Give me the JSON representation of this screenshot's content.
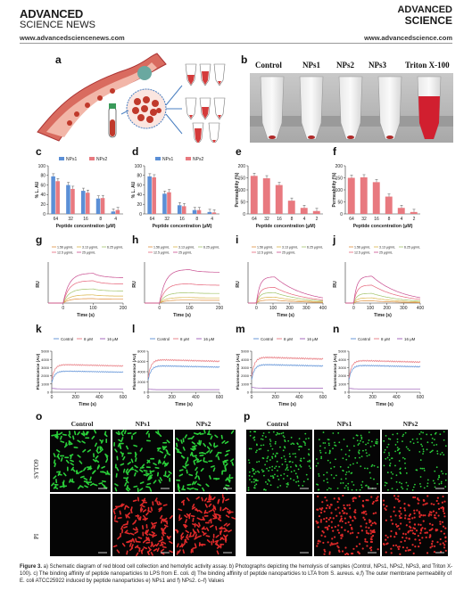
{
  "header": {
    "left_brand_line1": "ADVANCED",
    "left_brand_line2": "SCIENCE NEWS",
    "left_url": "www.advancedsciencenews.com",
    "right_brand_line1": "ADVANCED",
    "right_brand_line2": "SCIENCE",
    "right_url": "www.advancedscience.com"
  },
  "panels": {
    "a": "a",
    "b": "b",
    "c": "c",
    "d": "d",
    "e": "e",
    "f": "f",
    "g": "g",
    "h": "h",
    "i": "i",
    "j": "j",
    "k": "k",
    "l": "l",
    "m": "m",
    "n": "n",
    "o": "o",
    "p": "p"
  },
  "panel_b": {
    "tubes": [
      "Control",
      "NPs1",
      "NPs2",
      "NPs3",
      "Triton X-100"
    ]
  },
  "microscopy": {
    "o_cols": [
      "Control",
      "NPs1",
      "NPs2"
    ],
    "p_cols": [
      "Control",
      "NPs1",
      "NPs2"
    ],
    "rows": [
      "SYTO9",
      "PI"
    ]
  },
  "colors": {
    "nps1": "#5b8fd6",
    "nps2": "#e8797f",
    "bar_red": "#e8797f",
    "control": "#5b8fd6",
    "c8": "#e8797f",
    "c16": "#9b59b6"
  },
  "caption": {
    "label": "Figure 3.",
    "text": " a) Schematic diagram of red blood cell collection and hemolytic activity assay. b) Photographs depicting the hemolysis of samples (Control, NPs1, NPs2, NPs3, and Triton X-100). c) The binding affinity of peptide nanoparticles to LPS from E. coli. d) The binding affinity of peptide nanoparticles to LTA from S. aureus. e,f) The outer membrane permeability of E. coli ATCC25922 induced by peptide nanoparticles e) NPs1 and f) NPs2. c–f) Values"
  },
  "chart_data": [
    {
      "id": "c",
      "type": "bar",
      "categories": [
        "64",
        "32",
        "16",
        "8",
        "4"
      ],
      "series": [
        {
          "name": "NPs1",
          "values": [
            78,
            60,
            48,
            32,
            5
          ]
        },
        {
          "name": "NPs2",
          "values": [
            68,
            52,
            44,
            33,
            8
          ]
        }
      ],
      "xlabel": "Peptide concentration (μM)",
      "ylabel": "% L. AU",
      "ylim": [
        0,
        100
      ],
      "yticks": [
        "0",
        "20",
        "40",
        "60",
        "80",
        "100"
      ]
    },
    {
      "id": "d",
      "type": "bar",
      "categories": [
        "64",
        "32",
        "16",
        "8",
        "4"
      ],
      "series": [
        {
          "name": "NPs1",
          "values": [
            78,
            42,
            18,
            8,
            4
          ]
        },
        {
          "name": "NPs2",
          "values": [
            76,
            45,
            16,
            8,
            3
          ]
        }
      ],
      "xlabel": "Peptide concentration (μM)",
      "ylabel": "% L. AU",
      "ylim": [
        0,
        100
      ],
      "yticks": [
        "0",
        "20",
        "40",
        "60",
        "80",
        "100"
      ]
    },
    {
      "id": "e",
      "type": "bar",
      "categories": [
        "64",
        "32",
        "16",
        "8",
        "4",
        "2"
      ],
      "series": [
        {
          "name": "",
          "values": [
            158,
            148,
            120,
            55,
            25,
            12
          ]
        }
      ],
      "xlabel": "Peptide concentration (μM)",
      "ylabel": "Permeability (%)",
      "ylim": [
        0,
        200
      ],
      "yticks": [
        "0",
        "50",
        "100",
        "150",
        "200"
      ]
    },
    {
      "id": "f",
      "type": "bar",
      "categories": [
        "64",
        "32",
        "16",
        "8",
        "4",
        "2"
      ],
      "series": [
        {
          "name": "",
          "values": [
            150,
            152,
            132,
            72,
            25,
            8
          ]
        }
      ],
      "xlabel": "Peptide concentration (μM)",
      "ylabel": "Permeability (%)",
      "ylim": [
        0,
        200
      ],
      "yticks": [
        "0",
        "50",
        "100",
        "150",
        "200"
      ]
    },
    {
      "id": "g",
      "type": "line",
      "xlabel": "Time (s)",
      "ylabel": "RU",
      "xlim": [
        -50,
        200
      ],
      "xticks": [
        "0",
        "100",
        "200"
      ],
      "legend": [
        "1.56 μg/mL",
        "3.13 μg/mL",
        "6.25 μg/mL",
        "12.5 μg/mL",
        "25 μg/mL"
      ],
      "peaks": [
        12,
        22,
        38,
        60,
        80
      ],
      "t_off": 100,
      "decay": 0.85
    },
    {
      "id": "h",
      "type": "line",
      "xlabel": "Time (s)",
      "ylabel": "RU",
      "xlim": [
        -50,
        200
      ],
      "xticks": [
        "0",
        "100",
        "200"
      ],
      "legend": [
        "1.56 μg/mL",
        "3.13 μg/mL",
        "6.25 μg/mL",
        "12.5 μg/mL",
        "25 μg/mL"
      ],
      "peaks": [
        8,
        15,
        28,
        52,
        90
      ],
      "t_off": 100,
      "decay": 0.92
    },
    {
      "id": "i",
      "type": "line",
      "xlabel": "Time (s)",
      "ylabel": "RU",
      "xlim": [
        -50,
        400
      ],
      "xticks": [
        "0",
        "100",
        "200",
        "300",
        "400"
      ],
      "legend": [
        "1.56 μg/mL",
        "3.13 μg/mL",
        "6.25 μg/mL",
        "12.5 μg/mL",
        "25 μg/mL"
      ],
      "peaks": [
        8,
        16,
        28,
        42,
        70
      ],
      "t_off": 110,
      "decay": 0.45
    },
    {
      "id": "j",
      "type": "line",
      "xlabel": "Time (s)",
      "ylabel": "RU",
      "xlim": [
        -50,
        400
      ],
      "xticks": [
        "0",
        "100",
        "200",
        "300",
        "400"
      ],
      "legend": [
        "1.56 μg/mL",
        "3.13 μg/mL",
        "6.25 μg/mL",
        "12.5 μg/mL",
        "25 μg/mL"
      ],
      "peaks": [
        6,
        14,
        26,
        48,
        72
      ],
      "t_off": 110,
      "decay": 0.5
    },
    {
      "id": "k",
      "type": "line",
      "xlabel": "Time (s)",
      "ylabel": "Fluorescence (AU)",
      "xlim": [
        0,
        600
      ],
      "xticks": [
        "0",
        "200",
        "400",
        "600"
      ],
      "ylim": [
        0,
        5000
      ],
      "yticks": [
        "0",
        "1000",
        "2000",
        "3000",
        "4000",
        "5000"
      ],
      "legend": [
        "Control",
        "8 μM",
        "16 μM"
      ],
      "levels": [
        400,
        2600,
        3400
      ]
    },
    {
      "id": "l",
      "type": "line",
      "xlabel": "Time (s)",
      "ylabel": "Fluorescence (AU)",
      "xlim": [
        0,
        600
      ],
      "xticks": [
        "0",
        "200",
        "400",
        "600"
      ],
      "ylim": [
        0,
        8000
      ],
      "yticks": [
        "0",
        "2000",
        "4000",
        "6000",
        "8000"
      ],
      "legend": [
        "Control",
        "8 μM",
        "16 μM"
      ],
      "levels": [
        500,
        5200,
        6400
      ]
    },
    {
      "id": "m",
      "type": "line",
      "xlabel": "Time (s)",
      "ylabel": "Fluorescence (AU)",
      "xlim": [
        0,
        600
      ],
      "xticks": [
        "0",
        "200",
        "400",
        "600"
      ],
      "ylim": [
        0,
        5000
      ],
      "yticks": [
        "0",
        "1000",
        "2000",
        "3000",
        "4000",
        "5000"
      ],
      "legend": [
        "Control",
        "8 μM",
        "16 μM"
      ],
      "levels": [
        500,
        3400,
        4300
      ]
    },
    {
      "id": "n",
      "type": "line",
      "xlabel": "Time (s)",
      "ylabel": "Fluorescence (AU)",
      "xlim": [
        0,
        600
      ],
      "xticks": [
        "0",
        "200",
        "400",
        "600"
      ],
      "ylim": [
        0,
        5000
      ],
      "yticks": [
        "0",
        "1000",
        "2000",
        "3000",
        "4000",
        "5000"
      ],
      "legend": [
        "Control",
        "8 μM",
        "16 μM"
      ],
      "levels": [
        400,
        3300,
        3900
      ]
    }
  ]
}
